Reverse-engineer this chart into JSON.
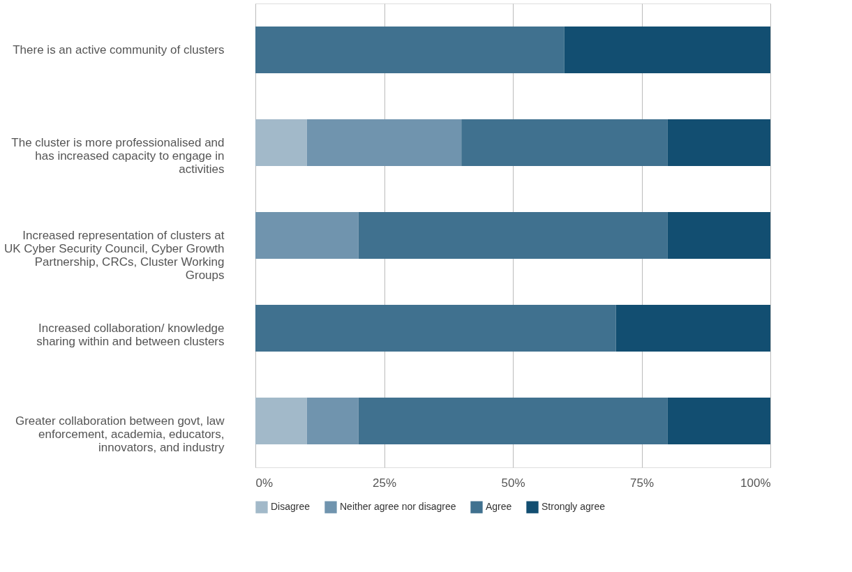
{
  "chart_data": {
    "type": "bar",
    "orientation": "horizontal",
    "stacked": true,
    "categories": [
      "There is an active community of clusters",
      "The cluster is more professionalised and has increased capacity to engage in activities",
      "Increased representation of clusters at UK Cyber Security Council, Cyber Growth Partnership, CRCs, Cluster Working Groups",
      "Increased collaboration/ knowledge sharing within and between clusters",
      "Greater collaboration between govt, law enforcement, academia, educators, innovators, and industry"
    ],
    "series": [
      {
        "name": "Disagree",
        "color": "#a2b9c9",
        "values": [
          null,
          10,
          null,
          null,
          10
        ]
      },
      {
        "name": "Neither agree nor disagree",
        "color": "#7094ae",
        "values": [
          null,
          30,
          20,
          null,
          10
        ]
      },
      {
        "name": "Agree",
        "color": "#40718f",
        "values": [
          60,
          40,
          60,
          70,
          60
        ]
      },
      {
        "name": "Strongly agree",
        "color": "#124e71",
        "values": [
          40,
          20,
          20,
          30,
          20
        ]
      }
    ],
    "xlim": [
      0,
      100
    ],
    "xticks": [
      {
        "value": 0,
        "label": "0%"
      },
      {
        "value": 25,
        "label": "25%"
      },
      {
        "value": 50,
        "label": "50%"
      },
      {
        "value": 75,
        "label": "75%"
      },
      {
        "value": 100,
        "label": "100%"
      }
    ],
    "grid": "x",
    "legend": "bottom"
  }
}
